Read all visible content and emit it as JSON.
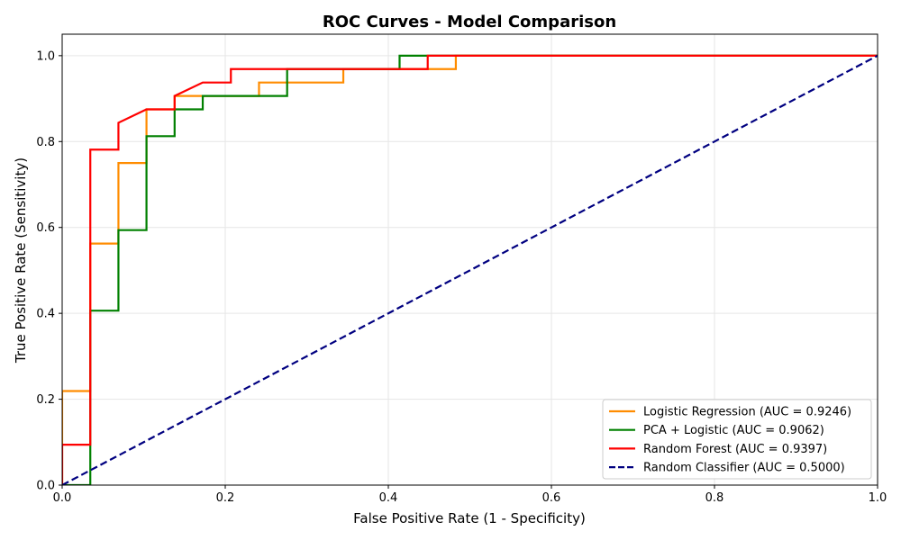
{
  "chart_data": {
    "type": "line",
    "title": "ROC Curves - Model Comparison",
    "xlabel": "False Positive Rate (1 - Specificity)",
    "ylabel": "True Positive Rate (Sensitivity)",
    "xlim": [
      0.0,
      1.0
    ],
    "ylim": [
      0.0,
      1.05
    ],
    "xticks": [
      0.0,
      0.2,
      0.4,
      0.6,
      0.8,
      1.0
    ],
    "yticks": [
      0.0,
      0.2,
      0.4,
      0.6,
      0.8,
      1.0
    ],
    "xtick_labels": [
      "0.0",
      "0.2",
      "0.4",
      "0.6",
      "0.8",
      "1.0"
    ],
    "ytick_labels": [
      "0.0",
      "0.2",
      "0.4",
      "0.6",
      "0.8",
      "1.0"
    ],
    "grid": true,
    "legend_position": "lower-right",
    "series": [
      {
        "name": "Logistic Regression (AUC = 0.9246)",
        "color": "#ff8c00",
        "dash": "solid",
        "x": [
          0.0,
          0.0,
          0.0345,
          0.0345,
          0.069,
          0.069,
          0.1034,
          0.1034,
          0.1379,
          0.1379,
          0.2414,
          0.2414,
          0.3448,
          0.3448,
          0.4828,
          0.4828,
          1.0
        ],
        "y": [
          0.0,
          0.219,
          0.219,
          0.5625,
          0.5625,
          0.75,
          0.75,
          0.875,
          0.875,
          0.9062,
          0.9062,
          0.9375,
          0.9375,
          0.9688,
          0.9688,
          1.0,
          1.0
        ]
      },
      {
        "name": "PCA + Logistic (AUC = 0.9062)",
        "color": "#008000",
        "dash": "solid",
        "x": [
          0.0,
          0.0345,
          0.0345,
          0.069,
          0.069,
          0.1034,
          0.1034,
          0.1379,
          0.1379,
          0.1724,
          0.1724,
          0.2759,
          0.2759,
          0.4138,
          0.4138,
          1.0
        ],
        "y": [
          0.0,
          0.0,
          0.4062,
          0.4062,
          0.5938,
          0.5938,
          0.8125,
          0.8125,
          0.875,
          0.875,
          0.9062,
          0.9062,
          0.9688,
          0.9688,
          1.0,
          1.0
        ]
      },
      {
        "name": "Random Forest (AUC = 0.9397)",
        "color": "#ff0000",
        "dash": "solid",
        "x": [
          0.0,
          0.0,
          0.0345,
          0.0345,
          0.069,
          0.069,
          0.1034,
          0.1379,
          0.1379,
          0.1724,
          0.2069,
          0.2069,
          0.4483,
          0.4483,
          1.0
        ],
        "y": [
          0.0,
          0.094,
          0.094,
          0.7812,
          0.7812,
          0.8438,
          0.875,
          0.875,
          0.9062,
          0.9375,
          0.9375,
          0.9688,
          0.9688,
          1.0,
          1.0
        ]
      },
      {
        "name": "Random Classifier (AUC = 0.5000)",
        "color": "#000080",
        "dash": "dashed",
        "x": [
          0.0,
          1.0
        ],
        "y": [
          0.0,
          1.0
        ]
      }
    ]
  }
}
